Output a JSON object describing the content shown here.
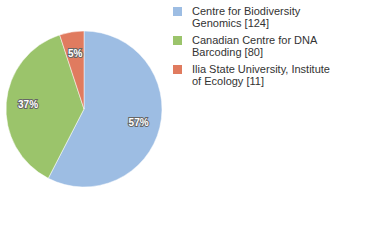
{
  "chart_data": {
    "type": "pie",
    "categories": [
      "Centre for Biodiversity Genomics [124]",
      "Canadian Centre for DNA Barcoding [80]",
      "Ilia State University, Institute of Ecology [11]"
    ],
    "values": [
      57,
      37,
      5
    ],
    "value_labels": [
      "57%",
      "37%",
      "5%"
    ],
    "colors": [
      "#9dbde3",
      "#9bc46b",
      "#e07b5f"
    ],
    "data_labels": true,
    "legend": "top-right"
  }
}
